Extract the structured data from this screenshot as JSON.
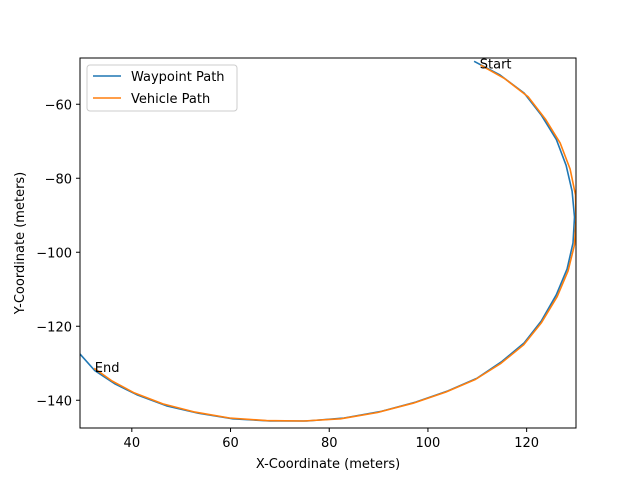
{
  "chart_data": {
    "type": "line",
    "title": "",
    "xlabel": "X-Coordinate (meters)",
    "ylabel": "Y-Coordinate (meters)",
    "xlim": [
      29.5,
      130
    ],
    "ylim": [
      -147.5,
      -47.5
    ],
    "xticks": [
      40,
      60,
      80,
      100,
      120
    ],
    "yticks": [
      -60,
      -80,
      -100,
      -120,
      -140
    ],
    "grid": false,
    "legend_position": "top-left",
    "series": [
      {
        "name": "Waypoint Path",
        "color": "#1f77b4",
        "x": [
          109.5,
          114.5,
          119.5,
          123.0,
          126.0,
          128.0,
          129.2,
          129.7,
          129.4,
          128.2,
          126.0,
          123.0,
          119.5,
          115.0,
          110.0,
          104.0,
          97.5,
          90.5,
          83.0,
          75.5,
          68.0,
          60.5,
          53.5,
          47.0,
          41.0,
          36.5,
          32.5,
          29.5
        ],
        "y": [
          -48.5,
          -52.0,
          -57.0,
          -63.0,
          -69.5,
          -76.5,
          -83.5,
          -90.5,
          -97.5,
          -104.5,
          -111.5,
          -118.5,
          -124.5,
          -129.5,
          -134.0,
          -137.5,
          -140.5,
          -143.0,
          -144.8,
          -145.6,
          -145.6,
          -145.0,
          -143.5,
          -141.5,
          -138.5,
          -135.5,
          -132.0,
          -127.5
        ]
      },
      {
        "name": "Vehicle Path",
        "color": "#ff7f0e",
        "x": [
          110.8,
          115.5,
          120.3,
          123.8,
          126.8,
          128.8,
          129.9,
          130.0,
          129.7,
          128.4,
          126.2,
          123.0,
          119.4,
          114.8,
          109.6,
          103.6,
          97.0,
          89.8,
          82.3,
          74.8,
          67.3,
          59.8,
          52.8,
          46.3,
          40.5,
          36.0,
          32.5
        ],
        "y": [
          -49.5,
          -53.0,
          -58.0,
          -64.0,
          -70.5,
          -77.5,
          -84.5,
          -91.0,
          -98.0,
          -105.0,
          -112.0,
          -119.0,
          -125.0,
          -130.0,
          -134.4,
          -137.8,
          -140.8,
          -143.3,
          -145.0,
          -145.6,
          -145.5,
          -144.8,
          -143.2,
          -141.0,
          -138.0,
          -134.8,
          -131.5
        ]
      }
    ],
    "annotations": [
      {
        "text": "Start",
        "x": 110.5,
        "y": -49.0
      },
      {
        "text": "End",
        "x": 32.5,
        "y": -131.0
      }
    ]
  }
}
